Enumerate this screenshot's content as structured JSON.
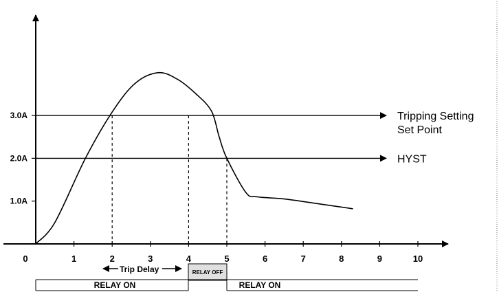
{
  "chart_data": {
    "type": "line",
    "title": "",
    "xlabel": "",
    "ylabel": "",
    "x_ticks": [
      "0",
      "1",
      "2",
      "3",
      "4",
      "5",
      "6",
      "7",
      "8",
      "9",
      "10"
    ],
    "y_ticks": [
      "1.0A",
      "2.0A",
      "3.0A"
    ],
    "xlim": [
      0,
      10
    ],
    "ylim": [
      0,
      5.5
    ],
    "thresholds": [
      {
        "name": "tripping",
        "value": 3.0,
        "label_line1": "Tripping Setting",
        "label_line2": "Set Point"
      },
      {
        "name": "hyst",
        "value": 2.0,
        "label_line1": "HYST"
      }
    ],
    "series": [
      {
        "x": [
          0,
          0.5,
          1.3,
          2,
          2.6,
          3.2,
          3.7,
          4.2,
          4.6,
          4.8,
          5,
          5.5,
          5.8,
          6.5,
          7.3,
          8.3
        ],
        "y": [
          0,
          0.5,
          2.0,
          3.08,
          3.75,
          4.0,
          3.85,
          3.5,
          3.1,
          2.5,
          2.0,
          1.2,
          1.1,
          1.05,
          0.95,
          0.82
        ]
      }
    ],
    "trip_marks_x": [
      2,
      4
    ],
    "hyst_mark_x": 5
  },
  "annotations": {
    "trip_delay": "Trip Delay",
    "relay_on_left": "RELAY ON",
    "relay_off": "RELAY OFF",
    "relay_on_right": "RELAY ON"
  }
}
